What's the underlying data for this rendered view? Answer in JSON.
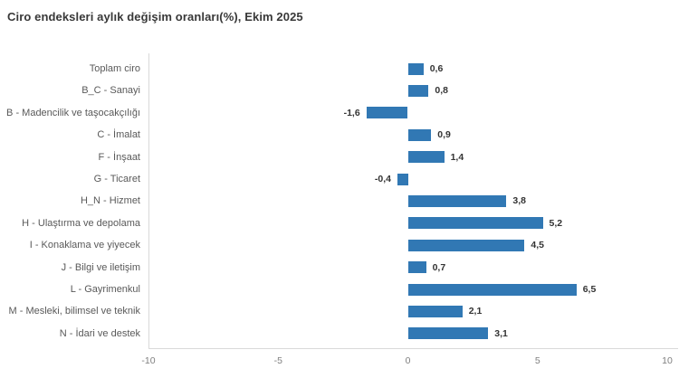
{
  "chart_data": {
    "type": "bar",
    "orientation": "horizontal",
    "title": "Ciro endeksleri aylık değişim oranları(%), Ekim 2025",
    "categories": [
      "Toplam ciro",
      "B_C - Sanayi",
      "B - Madencilik ve taşocakçılığı",
      "C - İmalat",
      "F - İnşaat",
      "G - Ticaret",
      "H_N - Hizmet",
      "H - Ulaştırma ve depolama",
      "I - Konaklama ve yiyecek",
      "J - Bilgi ve iletişim",
      "L - Gayrimenkul",
      "M - Mesleki, bilimsel ve teknik",
      "N - İdari ve destek"
    ],
    "values": [
      0.6,
      0.8,
      -1.6,
      0.9,
      1.4,
      -0.4,
      3.8,
      5.2,
      4.5,
      0.7,
      6.5,
      2.1,
      3.1
    ],
    "value_labels": [
      "0,6",
      "0,8",
      "-1,6",
      "0,9",
      "1,4",
      "-0,4",
      "3,8",
      "5,2",
      "4,5",
      "0,7",
      "6,5",
      "2,1",
      "3,1"
    ],
    "xlabel": "",
    "ylabel": "",
    "xlim": [
      -10,
      10
    ],
    "x_ticks": [
      "-10",
      "-5",
      "0",
      "5",
      "10"
    ],
    "x_tick_values": [
      -10,
      -5,
      0,
      5,
      10
    ],
    "grid": "none",
    "legend": "none",
    "bar_color": "#3178b4"
  }
}
